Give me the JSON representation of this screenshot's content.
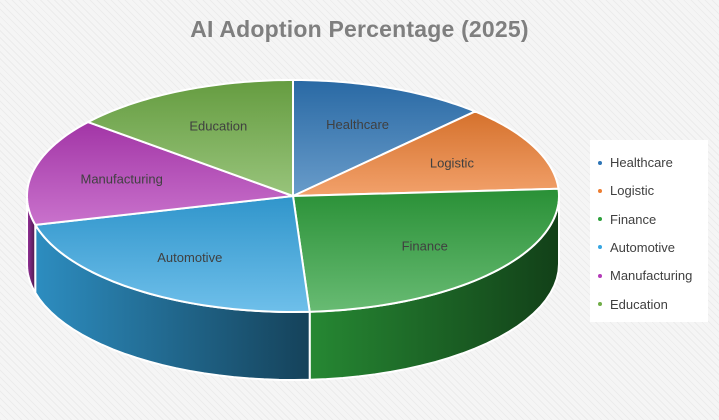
{
  "chart_data": {
    "type": "pie",
    "title": "AI Adoption Percentage (2025)",
    "legend_position": "right",
    "categories": [
      "Healthcare",
      "Logistic",
      "Finance",
      "Automotive",
      "Manufacturing",
      "Education"
    ],
    "values": [
      12,
      12,
      25,
      22,
      15,
      14
    ],
    "colors": [
      "#2e75b6",
      "#ed7d31",
      "#2da03c",
      "#35a6e2",
      "#b43bb8",
      "#70ad47"
    ],
    "legend": [
      "Healthcare",
      "Logistic",
      "Finance",
      "Automotive",
      "Manufacturing",
      "Education"
    ]
  }
}
